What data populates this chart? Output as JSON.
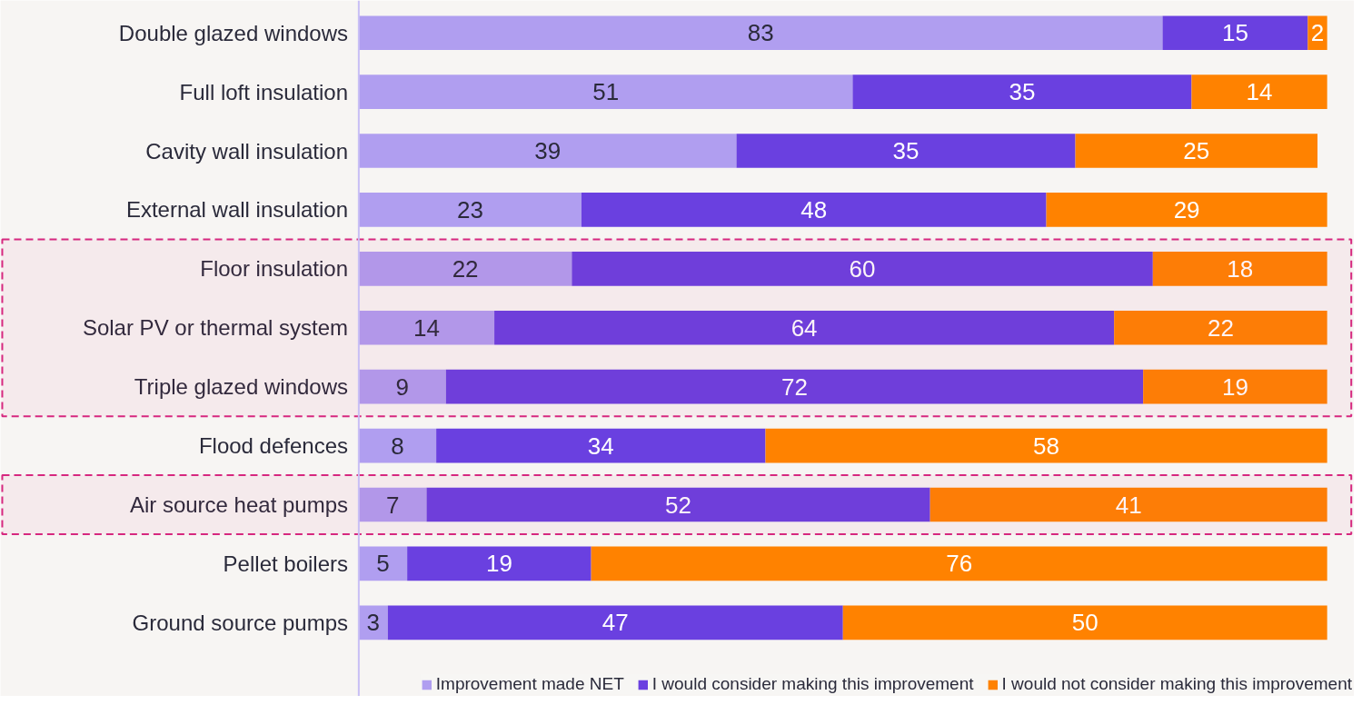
{
  "chart_data": {
    "type": "bar",
    "orientation": "horizontal",
    "stacked": true,
    "data_labels": true,
    "legend": "bottom",
    "grid": false,
    "categories": [
      "Double glazed windows",
      "Full loft insulation",
      "Cavity wall insulation",
      "External wall insulation",
      "Floor insulation",
      "Solar PV or thermal system",
      "Triple glazed windows",
      "Flood defences",
      "Air source heat pumps",
      "Pellet boilers",
      "Ground source pumps"
    ],
    "series": [
      {
        "name": "Improvement made NET",
        "color": "#b09ef0",
        "values": [
          83,
          51,
          39,
          23,
          22,
          14,
          9,
          8,
          7,
          5,
          3
        ]
      },
      {
        "name": "I would consider making this improvement",
        "color": "#6a40e0",
        "values": [
          15,
          35,
          35,
          48,
          60,
          64,
          72,
          34,
          52,
          19,
          47
        ]
      },
      {
        "name": "I would not consider making this improvement",
        "color": "#ff8200",
        "values": [
          2,
          14,
          25,
          29,
          18,
          22,
          19,
          58,
          41,
          76,
          50
        ]
      }
    ],
    "bands": [
      {
        "axis": "y",
        "from": "Floor insulation",
        "to": "Triple glazed windows",
        "color": "#d6287f"
      },
      {
        "axis": "y",
        "from": "Air source heat pumps",
        "to": "Air source heat pumps",
        "color": "#d6287f"
      }
    ]
  }
}
